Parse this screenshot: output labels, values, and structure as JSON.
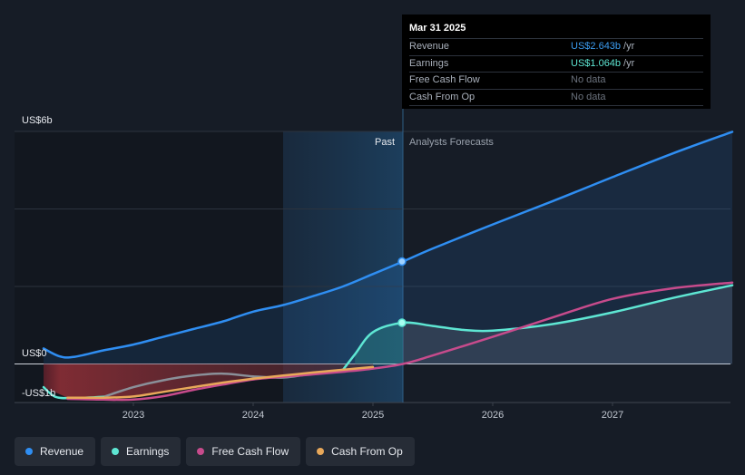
{
  "tooltip": {
    "date": "Mar 31 2025",
    "rows": [
      {
        "label": "Revenue",
        "value": "US$2.643b",
        "unit": "/yr",
        "color": "#3b9cf0"
      },
      {
        "label": "Earnings",
        "value": "US$1.064b",
        "unit": "/yr",
        "color": "#5ee6d3"
      },
      {
        "label": "Free Cash Flow",
        "value": "No data",
        "unit": "",
        "color": "#6b727d"
      },
      {
        "label": "Cash From Op",
        "value": "No data",
        "unit": "",
        "color": "#6b727d"
      }
    ]
  },
  "labels": {
    "past": "Past",
    "forecast": "Analysts Forecasts"
  },
  "legend": [
    {
      "label": "Revenue",
      "color": "#2f8ef2"
    },
    {
      "label": "Earnings",
      "color": "#5ee6d3"
    },
    {
      "label": "Free Cash Flow",
      "color": "#c74b8c"
    },
    {
      "label": "Cash From Op",
      "color": "#e8a85a"
    }
  ],
  "chart_data": {
    "type": "line",
    "y_tick_labels": [
      "US$6b",
      "US$0",
      "-US$1b"
    ],
    "y_ticks": [
      6,
      0,
      -1
    ],
    "ylim": [
      -1,
      6
    ],
    "xlim": [
      2022.25,
      2028.0
    ],
    "x_tick_labels": [
      "2023",
      "2024",
      "2025",
      "2026",
      "2027"
    ],
    "x_ticks": [
      2023,
      2024,
      2025,
      2026,
      2027
    ],
    "past_end": 2025.25,
    "shade_start": 2024.25,
    "series": [
      {
        "name": "Revenue",
        "color": "#2f8ef2",
        "x": [
          2022.25,
          2022.38,
          2022.5,
          2022.75,
          2023.0,
          2023.25,
          2023.5,
          2023.75,
          2024.0,
          2024.25,
          2024.5,
          2024.75,
          2025.0,
          2025.25,
          2025.5,
          2026.0,
          2026.5,
          2027.0,
          2027.5,
          2028.0
        ],
        "y": [
          0.4,
          0.2,
          0.18,
          0.35,
          0.5,
          0.7,
          0.9,
          1.1,
          1.35,
          1.52,
          1.75,
          2.0,
          2.32,
          2.643,
          2.98,
          3.6,
          4.2,
          4.82,
          5.43,
          5.99
        ]
      },
      {
        "name": "Earnings",
        "color": "#5ee6d3",
        "x": [
          2022.25,
          2022.35,
          2022.5,
          2022.75,
          2023.0,
          2023.25,
          2023.5,
          2023.75,
          2024.0,
          2024.25,
          2024.5,
          2024.75,
          2024.85,
          2025.0,
          2025.25,
          2025.5,
          2025.75,
          2026.0,
          2026.5,
          2027.0,
          2027.5,
          2028.0
        ],
        "y": [
          -0.6,
          -0.85,
          -0.88,
          -0.85,
          -0.6,
          -0.42,
          -0.3,
          -0.25,
          -0.32,
          -0.35,
          -0.25,
          -0.15,
          0.25,
          0.82,
          1.064,
          0.98,
          0.88,
          0.86,
          1.03,
          1.33,
          1.7,
          2.03
        ]
      },
      {
        "name": "Free Cash Flow",
        "color": "#c74b8c",
        "x": [
          2022.45,
          2022.75,
          2023.0,
          2023.25,
          2023.5,
          2023.75,
          2024.0,
          2024.25,
          2024.5,
          2024.75,
          2025.0,
          2025.25,
          2025.5,
          2026.0,
          2026.5,
          2027.0,
          2027.5,
          2028.0
        ],
        "y": [
          -0.9,
          -0.92,
          -0.92,
          -0.83,
          -0.67,
          -0.53,
          -0.4,
          -0.33,
          -0.27,
          -0.2,
          -0.12,
          0.0,
          0.22,
          0.7,
          1.2,
          1.68,
          1.95,
          2.1
        ]
      },
      {
        "name": "Cash From Op",
        "color": "#e8a85a",
        "x": [
          2022.45,
          2022.75,
          2023.0,
          2023.25,
          2023.5,
          2023.75,
          2024.0,
          2024.25,
          2024.5,
          2024.75,
          2025.0
        ],
        "y": [
          -0.87,
          -0.87,
          -0.84,
          -0.72,
          -0.6,
          -0.48,
          -0.38,
          -0.3,
          -0.22,
          -0.15,
          -0.08
        ]
      }
    ]
  }
}
